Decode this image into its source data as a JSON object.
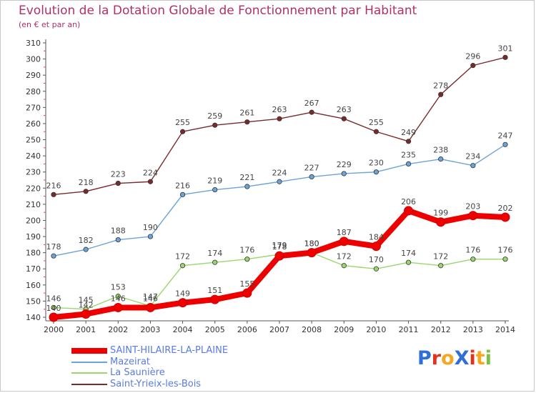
{
  "title": "Evolution de la Dotation Globale de Fonctionnement par Habitant",
  "subtitle": "(en € et par an)",
  "logo_text": "ProXiti",
  "chart_data": {
    "type": "line",
    "title": "Evolution de la Dotation Globale de Fonctionnement par Habitant",
    "subtitle": "(en € et par an)",
    "xlabel": "",
    "ylabel": "",
    "ylim": [
      140,
      310
    ],
    "ytick_step": 10,
    "grid": false,
    "legend_placement": "bottom-left",
    "x": [
      "2000",
      "2001",
      "2002",
      "2003",
      "2004",
      "2005",
      "2006",
      "2007",
      "2008",
      "2009",
      "2010",
      "2011",
      "2012",
      "2013",
      "2014"
    ],
    "series": [
      {
        "name": "SAINT-HILAIRE-LA-PLAINE",
        "color": "#ee0000",
        "values": [
          140,
          142,
          146,
          146,
          149,
          151,
          155,
          178,
          180,
          187,
          184,
          206,
          199,
          203,
          202
        ]
      },
      {
        "name": "Mazeirat",
        "color": "#6ca3d8",
        "values": [
          178,
          182,
          188,
          190,
          216,
          219,
          221,
          224,
          227,
          229,
          230,
          235,
          238,
          234,
          247
        ]
      },
      {
        "name": "La Saunière",
        "color": "#9ad66e",
        "values": [
          146,
          145,
          153,
          147,
          172,
          174,
          176,
          179,
          180,
          172,
          170,
          174,
          172,
          176,
          176
        ]
      },
      {
        "name": "Saint-Yrieix-les-Bois",
        "color": "#7a2a2a",
        "values": [
          216,
          218,
          223,
          224,
          255,
          259,
          261,
          263,
          267,
          263,
          255,
          249,
          278,
          296,
          301
        ]
      }
    ]
  }
}
